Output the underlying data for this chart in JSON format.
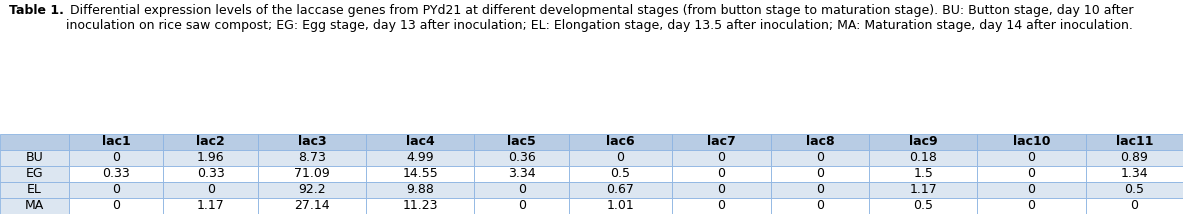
{
  "title_bold": "Table 1.",
  "title_rest": " Differential expression levels of the laccase genes from PYd21 at different developmental stages (from button stage to maturation stage). BU: Button stage, day 10 after inoculation on rice saw compost; EG: Egg stage, day 13 after inoculation; EL: Elongation stage, day 13.5 after inoculation; MA: Maturation stage, day 14 after inoculation.",
  "col_headers": [
    "",
    "lac1",
    "lac2",
    "lac3",
    "lac4",
    "lac5",
    "lac6",
    "lac7",
    "lac8",
    "lac9",
    "lac10",
    "lac11"
  ],
  "row_headers": [
    "BU",
    "EG",
    "EL",
    "MA"
  ],
  "table_data": [
    [
      "0",
      "1.96",
      "8.73",
      "4.99",
      "0.36",
      "0",
      "0",
      "0",
      "0.18",
      "0",
      "0.89"
    ],
    [
      "0.33",
      "0.33",
      "71.09",
      "14.55",
      "3.34",
      "0.5",
      "0",
      "0",
      "1.5",
      "0",
      "1.34"
    ],
    [
      "0",
      "0",
      "92.2",
      "9.88",
      "0",
      "0.67",
      "0",
      "0",
      "1.17",
      "0",
      "0.5"
    ],
    [
      "0",
      "1.17",
      "27.14",
      "11.23",
      "0",
      "1.01",
      "0",
      "0",
      "0.5",
      "0",
      "0"
    ]
  ],
  "header_bg": "#b8cce4",
  "data_bg_light": "#dce6f1",
  "data_bg_white": "#ffffff",
  "row_label_bg": "#dce6f1",
  "border_color": "#8db4e2",
  "text_color": "#000000",
  "fig_bg": "#ffffff",
  "figsize": [
    11.83,
    2.14
  ],
  "dpi": 100,
  "title_fontsize": 9.0,
  "table_fontsize": 9.0
}
